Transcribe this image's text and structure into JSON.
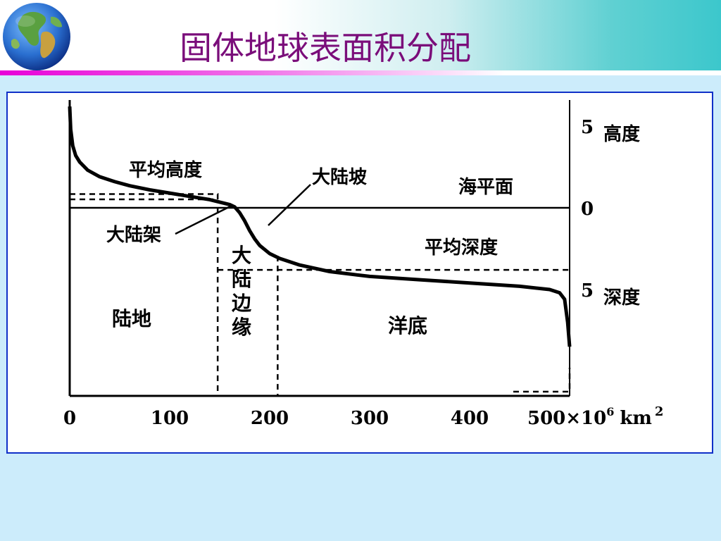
{
  "slide": {
    "title": "固体地球表面积分配"
  },
  "icons": {
    "globe": "globe-icon"
  },
  "colors": {
    "title": "#7a0d7a",
    "panel_border": "#1030c8",
    "background": "#ccecfb",
    "header_stripe": "#e800d8",
    "header_teal": "#3cc7cc"
  },
  "chart_data": {
    "type": "line",
    "x_ticks": [
      "0",
      "100",
      "200",
      "300",
      "400"
    ],
    "x_tick_values": [
      0,
      100,
      200,
      300,
      400
    ],
    "x_last_tick": {
      "prefix": "500×10",
      "exponent": "6",
      "unit": "km",
      "unit_exponent": "2"
    },
    "xlim": [
      0,
      500
    ],
    "ylim": [
      -6,
      6
    ],
    "y_ticks_right": [
      {
        "value": 5,
        "label": "5",
        "name": "高度"
      },
      {
        "value": 0,
        "label": "0",
        "name": ""
      },
      {
        "value": -5,
        "label": "5",
        "name": "深度"
      }
    ],
    "annotations": {
      "mean_height": "平均高度",
      "continental_slope": "大陆坡",
      "sea_level": "海平面",
      "continental_shelf": "大陆架",
      "mean_depth": "平均深度",
      "land": "陆地",
      "continental_margin": [
        "大",
        "陆",
        "边",
        "缘"
      ],
      "ocean_floor": "洋底"
    },
    "reference_lines": {
      "sea_level": 0,
      "mean_height": 0.84,
      "mean_depth": -3.8,
      "land_boundary_x": 148,
      "margin_boundary_x": 208,
      "margin_top_y": 0.84,
      "slope_top_y": -3.8
    },
    "series": [
      {
        "x": [
          0,
          1,
          3,
          6,
          10,
          18,
          30,
          45,
          60,
          80,
          100,
          120,
          140,
          150,
          160,
          165,
          170,
          175,
          180,
          185,
          190,
          200,
          210,
          230,
          260,
          300,
          350,
          400,
          450,
          480,
          490,
          495,
          498,
          500
        ],
        "y": [
          6.2,
          4.8,
          3.8,
          3.2,
          2.8,
          2.3,
          1.9,
          1.6,
          1.35,
          1.1,
          0.9,
          0.7,
          0.5,
          0.35,
          0.2,
          0.05,
          -0.3,
          -0.8,
          -1.4,
          -1.9,
          -2.3,
          -2.8,
          -3.1,
          -3.5,
          -3.9,
          -4.2,
          -4.4,
          -4.6,
          -4.8,
          -5.0,
          -5.2,
          -5.6,
          -7.0,
          -8.5
        ]
      }
    ]
  }
}
